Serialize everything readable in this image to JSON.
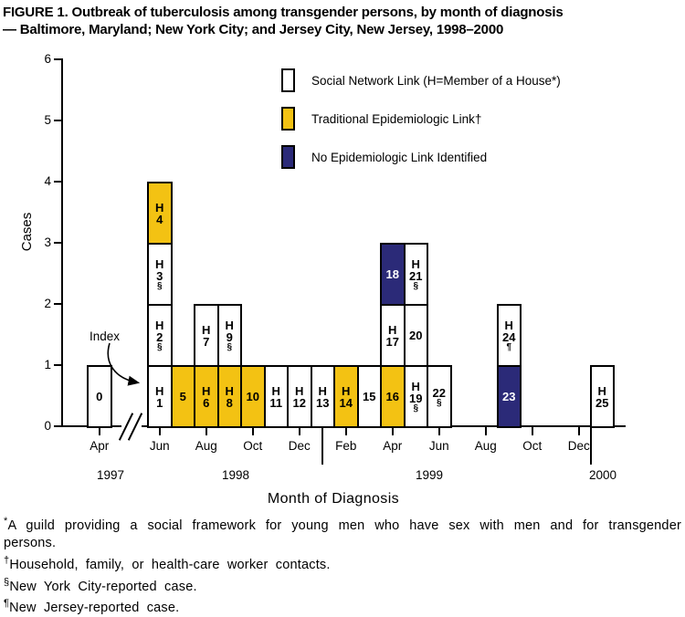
{
  "title": {
    "line1": "FIGURE 1. Outbreak of tuberculosis among transgender persons, by month of diagnosis",
    "line2": "— Baltimore, Maryland; New York City; and Jersey City, New Jersey, 1998–2000"
  },
  "colors": {
    "social": "#FFFFFF",
    "traditional": "#F3C213",
    "none": "#2B2A78",
    "axis": "#000000"
  },
  "chart_data": {
    "type": "bar",
    "subtype": "epi-curve-stacked-case-boxes",
    "title": "FIGURE 1. Outbreak of tuberculosis among transgender persons, by month of diagnosis — Baltimore, Maryland; New York City; and Jersey City, New Jersey, 1998–2000",
    "xlabel": "Month of Diagnosis",
    "ylabel": "Cases",
    "ylim": [
      0,
      6
    ],
    "yticks": [
      0,
      1,
      2,
      3,
      4,
      5,
      6
    ],
    "grid": false,
    "legend_position": "top-center",
    "legend": [
      {
        "label": "Social Network Link (H=Member of a House*)",
        "link": "social"
      },
      {
        "label": "Traditional Epidemiologic Link†",
        "link": "traditional"
      },
      {
        "label": "No Epidemiologic Link Identified",
        "link": "none"
      }
    ],
    "index_annotation": {
      "label": "Index",
      "points_to_case": "H1"
    },
    "x_axis": {
      "axis_break_between": [
        "Apr 1997",
        "Jun 1998"
      ],
      "month_ticks": [
        {
          "label": "Apr",
          "slot": null
        },
        {
          "label": "Jun",
          "slot": 0
        },
        {
          "label": "Aug",
          "slot": 2
        },
        {
          "label": "Oct",
          "slot": 4
        },
        {
          "label": "Dec",
          "slot": 6
        },
        {
          "label": "Feb",
          "slot": 8
        },
        {
          "label": "Apr",
          "slot": 10
        },
        {
          "label": "Jun",
          "slot": 12
        },
        {
          "label": "Aug",
          "slot": 14
        },
        {
          "label": "Oct",
          "slot": 16
        },
        {
          "label": "Dec",
          "slot": 18
        }
      ],
      "year_labels": [
        "1997",
        "1998",
        "1999",
        "2000"
      ]
    },
    "columns": [
      {
        "month": "Apr 1997",
        "slot": null,
        "cases": [
          {
            "id": "0",
            "lines": [
              "0"
            ],
            "link": "social"
          }
        ]
      },
      {
        "month": "Jun 1998",
        "slot": 0,
        "cases": [
          {
            "id": "H1",
            "lines": [
              "H",
              "1"
            ],
            "link": "social"
          },
          {
            "id": "H2",
            "lines": [
              "H",
              "2",
              "§"
            ],
            "link": "social"
          },
          {
            "id": "H3",
            "lines": [
              "H",
              "3",
              "§"
            ],
            "link": "social"
          },
          {
            "id": "H4",
            "lines": [
              "H",
              "4"
            ],
            "link": "traditional"
          }
        ]
      },
      {
        "month": "Jul 1998",
        "slot": 1,
        "cases": [
          {
            "id": "5",
            "lines": [
              "5"
            ],
            "link": "traditional"
          }
        ]
      },
      {
        "month": "Aug 1998",
        "slot": 2,
        "cases": [
          {
            "id": "H6",
            "lines": [
              "H",
              "6"
            ],
            "link": "traditional"
          },
          {
            "id": "H7",
            "lines": [
              "H",
              "7"
            ],
            "link": "social"
          }
        ]
      },
      {
        "month": "Sep 1998",
        "slot": 3,
        "cases": [
          {
            "id": "H8",
            "lines": [
              "H",
              "8"
            ],
            "link": "traditional"
          },
          {
            "id": "H9",
            "lines": [
              "H",
              "9",
              "§"
            ],
            "link": "social"
          }
        ]
      },
      {
        "month": "Oct 1998",
        "slot": 4,
        "cases": [
          {
            "id": "10",
            "lines": [
              "10"
            ],
            "link": "traditional"
          }
        ]
      },
      {
        "month": "Nov 1998",
        "slot": 5,
        "cases": [
          {
            "id": "H11",
            "lines": [
              "H",
              "11"
            ],
            "link": "social"
          }
        ]
      },
      {
        "month": "Dec 1998",
        "slot": 6,
        "cases": [
          {
            "id": "H12",
            "lines": [
              "H",
              "12"
            ],
            "link": "social"
          }
        ]
      },
      {
        "month": "Jan 1999",
        "slot": 7,
        "cases": [
          {
            "id": "H13",
            "lines": [
              "H",
              "13"
            ],
            "link": "social"
          }
        ]
      },
      {
        "month": "Feb 1999",
        "slot": 8,
        "cases": [
          {
            "id": "H14",
            "lines": [
              "H",
              "14"
            ],
            "link": "traditional"
          }
        ]
      },
      {
        "month": "Mar 1999",
        "slot": 9,
        "cases": [
          {
            "id": "15",
            "lines": [
              "15"
            ],
            "link": "social"
          }
        ]
      },
      {
        "month": "Apr 1999",
        "slot": 10,
        "cases": [
          {
            "id": "16",
            "lines": [
              "16"
            ],
            "link": "traditional"
          },
          {
            "id": "H17",
            "lines": [
              "H",
              "17"
            ],
            "link": "social"
          },
          {
            "id": "18",
            "lines": [
              "18"
            ],
            "link": "none"
          }
        ]
      },
      {
        "month": "May 1999",
        "slot": 11,
        "cases": [
          {
            "id": "H19",
            "lines": [
              "H",
              "19",
              "§"
            ],
            "link": "social"
          },
          {
            "id": "20",
            "lines": [
              "20"
            ],
            "link": "social"
          },
          {
            "id": "H21",
            "lines": [
              "H",
              "21",
              "§"
            ],
            "link": "social"
          }
        ]
      },
      {
        "month": "Jun 1999",
        "slot": 12,
        "cases": [
          {
            "id": "22",
            "lines": [
              "22",
              "§"
            ],
            "link": "social"
          }
        ]
      },
      {
        "month": "Sep 1999",
        "slot": 15,
        "cases": [
          {
            "id": "23",
            "lines": [
              "23"
            ],
            "link": "none"
          },
          {
            "id": "H24",
            "lines": [
              "H",
              "24",
              "¶"
            ],
            "link": "social"
          }
        ]
      },
      {
        "month": "Jan 2000",
        "slot": 19,
        "cases": [
          {
            "id": "H25",
            "lines": [
              "H",
              "25"
            ],
            "link": "social"
          }
        ]
      }
    ]
  },
  "footnotes": [
    {
      "marker": "*",
      "text": "A guild providing a social framework for young men who have sex with men and for transgender persons."
    },
    {
      "marker": "†",
      "text": "Household, family, or health-care worker contacts."
    },
    {
      "marker": "§",
      "text": "New York City-reported case."
    },
    {
      "marker": "¶",
      "text": "New Jersey-reported case."
    }
  ]
}
